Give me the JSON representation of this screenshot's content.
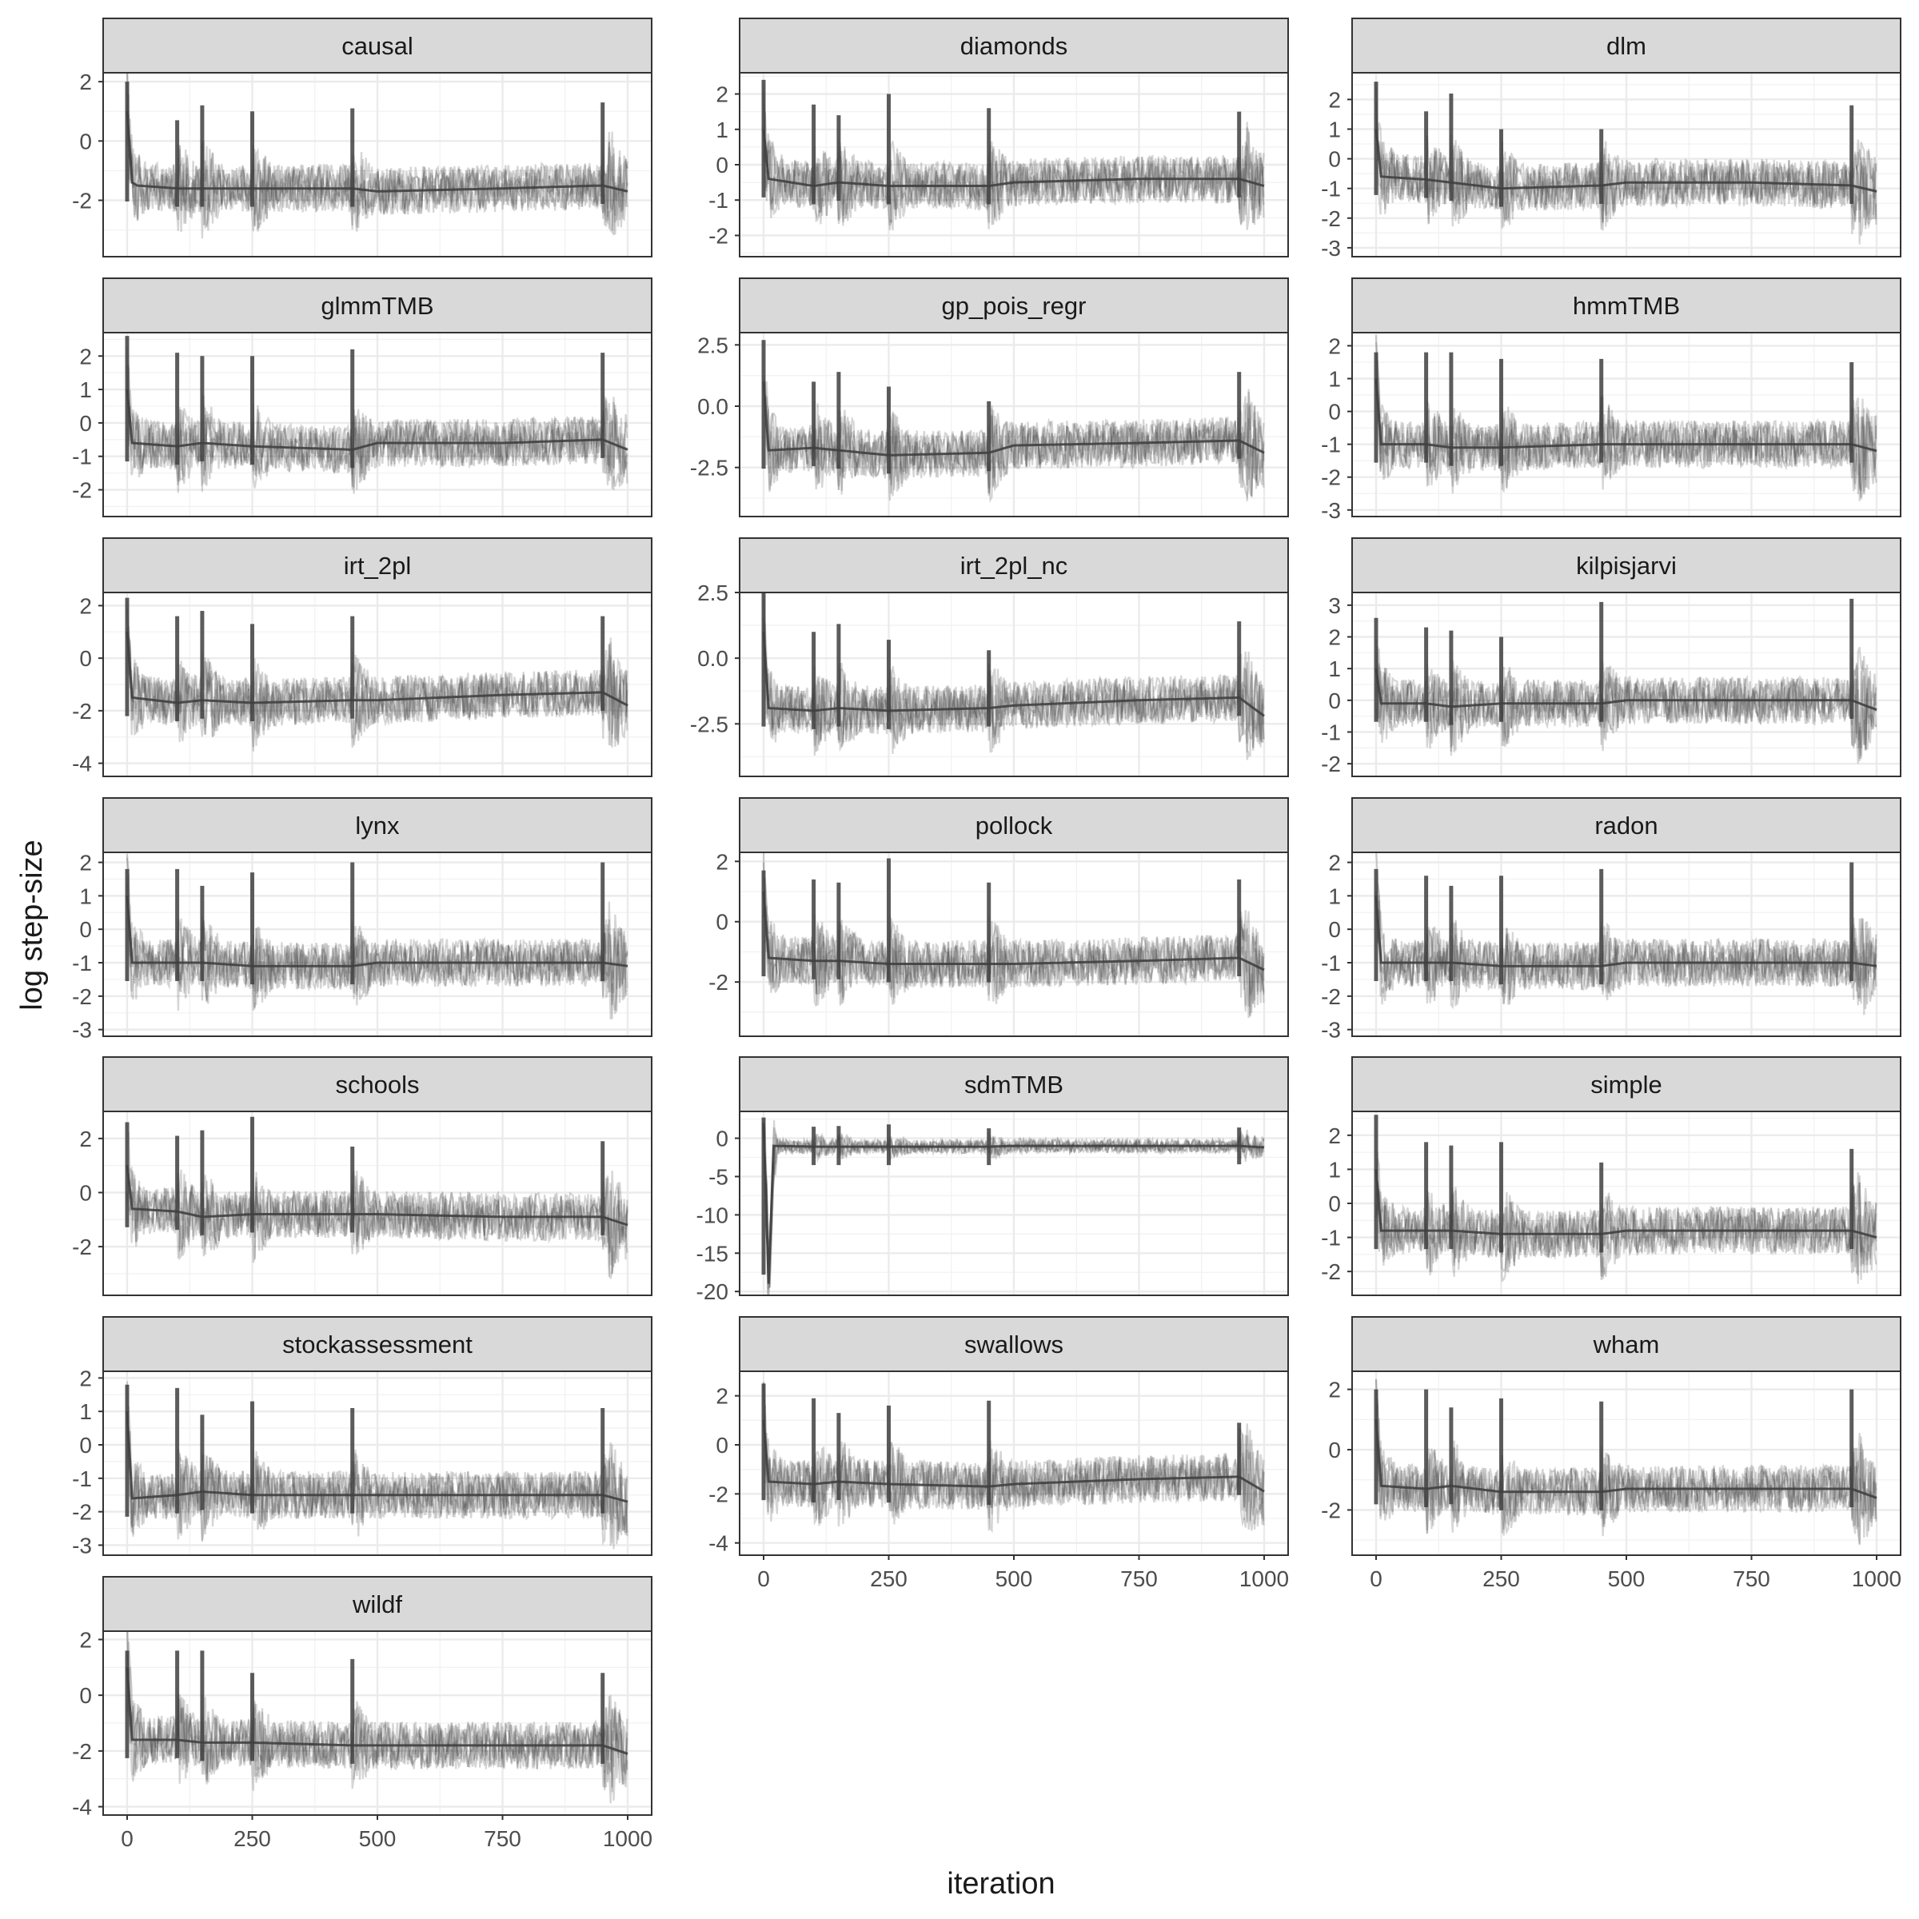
{
  "chart_data": {
    "type": "line",
    "layout": "faceted-grid",
    "xlabel": "iteration",
    "ylabel": "log step-size",
    "x_range": [
      0,
      1000
    ],
    "x_ticks": [
      0,
      250,
      500,
      750,
      1000
    ],
    "grid": true,
    "series_color": "#404040",
    "spike_iterations": [
      0,
      100,
      150,
      250,
      450,
      950
    ],
    "panels": [
      {
        "title": "causal",
        "ylim": [
          -3.9,
          2.3
        ],
        "y_ticks": [
          -2,
          0,
          2
        ],
        "y_tick_labels": [
          "-2",
          "0",
          "2"
        ],
        "spikes": [
          2.0,
          0.7,
          1.2,
          1.0,
          1.1,
          1.3
        ],
        "series": [
          {
            "x": [
              0,
              10,
              20,
              100,
              150,
              250,
              450,
              500,
              750,
              950,
              1000
            ],
            "y": [
              1.0,
              -1.4,
              -1.5,
              -1.6,
              -1.6,
              -1.6,
              -1.6,
              -1.7,
              -1.6,
              -1.5,
              -1.7
            ]
          }
        ]
      },
      {
        "title": "diamonds",
        "ylim": [
          -2.6,
          2.6
        ],
        "y_ticks": [
          -2,
          -1,
          0,
          1,
          2
        ],
        "y_tick_labels": [
          "-2",
          "-1",
          "0",
          "1",
          "2"
        ],
        "spikes": [
          2.4,
          1.7,
          1.4,
          2.0,
          1.6,
          1.5
        ],
        "series": [
          {
            "x": [
              0,
              10,
              100,
              150,
              250,
              450,
              500,
              750,
              950,
              1000
            ],
            "y": [
              1.0,
              -0.4,
              -0.6,
              -0.5,
              -0.6,
              -0.6,
              -0.5,
              -0.4,
              -0.4,
              -0.6
            ]
          }
        ]
      },
      {
        "title": "dlm",
        "ylim": [
          -3.3,
          2.9
        ],
        "y_ticks": [
          -3,
          -2,
          -1,
          0,
          1,
          2
        ],
        "y_tick_labels": [
          "-3",
          "-2",
          "-1",
          "0",
          "1",
          "2"
        ],
        "spikes": [
          2.6,
          1.6,
          2.2,
          1.0,
          1.0,
          1.8
        ],
        "series": [
          {
            "x": [
              0,
              10,
              100,
              150,
              250,
              450,
              500,
              750,
              950,
              1000
            ],
            "y": [
              1.0,
              -0.6,
              -0.7,
              -0.8,
              -1.0,
              -0.9,
              -0.8,
              -0.8,
              -0.9,
              -1.1
            ]
          }
        ]
      },
      {
        "title": "glmmTMB",
        "ylim": [
          -2.8,
          2.7
        ],
        "y_ticks": [
          -2,
          -1,
          0,
          1,
          2
        ],
        "y_tick_labels": [
          "-2",
          "-1",
          "0",
          "1",
          "2"
        ],
        "spikes": [
          2.6,
          2.1,
          2.0,
          2.0,
          2.2,
          2.1
        ],
        "series": [
          {
            "x": [
              0,
              10,
              100,
              150,
              250,
              450,
              500,
              750,
              950,
              1000
            ],
            "y": [
              1.0,
              -0.6,
              -0.7,
              -0.6,
              -0.7,
              -0.8,
              -0.6,
              -0.6,
              -0.5,
              -0.8
            ]
          }
        ]
      },
      {
        "title": "gp_pois_regr",
        "ylim": [
          -4.5,
          3.0
        ],
        "y_ticks": [
          -2.5,
          0,
          2.5
        ],
        "y_tick_labels": [
          "-2.5",
          "0.0",
          "2.5"
        ],
        "spikes": [
          2.7,
          1.0,
          1.4,
          0.8,
          0.2,
          1.4
        ],
        "series": [
          {
            "x": [
              0,
              10,
              100,
              150,
              250,
              450,
              500,
              750,
              950,
              1000
            ],
            "y": [
              1.0,
              -1.8,
              -1.7,
              -1.8,
              -2.0,
              -1.9,
              -1.6,
              -1.5,
              -1.4,
              -1.9
            ]
          }
        ]
      },
      {
        "title": "hmmTMB",
        "ylim": [
          -3.2,
          2.4
        ],
        "y_ticks": [
          -3,
          -2,
          -1,
          0,
          1,
          2
        ],
        "y_tick_labels": [
          "-3",
          "-2",
          "-1",
          "0",
          "1",
          "2"
        ],
        "spikes": [
          1.8,
          1.8,
          1.8,
          1.6,
          1.6,
          1.5
        ],
        "series": [
          {
            "x": [
              0,
              10,
              100,
              150,
              250,
              450,
              500,
              750,
              950,
              1000
            ],
            "y": [
              1.0,
              -1.0,
              -1.0,
              -1.1,
              -1.1,
              -1.0,
              -1.0,
              -1.0,
              -1.0,
              -1.2
            ]
          }
        ]
      },
      {
        "title": "irt_2pl",
        "ylim": [
          -4.5,
          2.5
        ],
        "y_ticks": [
          -4,
          -2,
          0,
          2
        ],
        "y_tick_labels": [
          "-4",
          "-2",
          "0",
          "2"
        ],
        "spikes": [
          2.3,
          1.6,
          1.8,
          1.3,
          1.6,
          1.6
        ],
        "series": [
          {
            "x": [
              0,
              10,
              100,
              150,
              250,
              450,
              500,
              750,
              950,
              1000
            ],
            "y": [
              1.0,
              -1.5,
              -1.7,
              -1.6,
              -1.7,
              -1.6,
              -1.6,
              -1.4,
              -1.3,
              -1.8
            ]
          }
        ]
      },
      {
        "title": "irt_2pl_nc",
        "ylim": [
          -4.5,
          2.5
        ],
        "y_ticks": [
          -2.5,
          0,
          2.5
        ],
        "y_tick_labels": [
          "-2.5",
          "0.0",
          "2.5"
        ],
        "spikes": [
          2.5,
          1.0,
          1.3,
          0.7,
          0.3,
          1.4
        ],
        "series": [
          {
            "x": [
              0,
              10,
              100,
              150,
              250,
              450,
              500,
              750,
              950,
              1000
            ],
            "y": [
              1.0,
              -1.9,
              -2.0,
              -1.9,
              -2.0,
              -1.9,
              -1.8,
              -1.6,
              -1.5,
              -2.2
            ]
          }
        ]
      },
      {
        "title": "kilpisjarvi",
        "ylim": [
          -2.4,
          3.4
        ],
        "y_ticks": [
          -2,
          -1,
          0,
          1,
          2,
          3
        ],
        "y_tick_labels": [
          "-2",
          "-1",
          "0",
          "1",
          "2",
          "3"
        ],
        "spikes": [
          2.6,
          2.3,
          2.2,
          2.0,
          3.1,
          3.2
        ],
        "series": [
          {
            "x": [
              0,
              10,
              100,
              150,
              250,
              450,
              500,
              750,
              950,
              1000
            ],
            "y": [
              1.0,
              -0.1,
              -0.1,
              -0.2,
              -0.1,
              -0.1,
              0.0,
              0.0,
              0.0,
              -0.3
            ]
          }
        ]
      },
      {
        "title": "lynx",
        "ylim": [
          -3.2,
          2.3
        ],
        "y_ticks": [
          -3,
          -2,
          -1,
          0,
          1,
          2
        ],
        "y_tick_labels": [
          "-3",
          "-2",
          "-1",
          "0",
          "1",
          "2"
        ],
        "spikes": [
          1.8,
          1.8,
          1.3,
          1.7,
          2.0,
          2.0
        ],
        "series": [
          {
            "x": [
              0,
              10,
              100,
              150,
              250,
              450,
              500,
              750,
              950,
              1000
            ],
            "y": [
              1.0,
              -1.0,
              -1.0,
              -1.0,
              -1.1,
              -1.1,
              -1.0,
              -1.0,
              -1.0,
              -1.1
            ]
          }
        ]
      },
      {
        "title": "pollock",
        "ylim": [
          -3.8,
          2.3
        ],
        "y_ticks": [
          -2,
          0,
          2
        ],
        "y_tick_labels": [
          "-2",
          "0",
          "2"
        ],
        "spikes": [
          1.7,
          1.4,
          1.3,
          2.1,
          1.3,
          1.4
        ],
        "series": [
          {
            "x": [
              0,
              10,
              100,
              150,
              250,
              450,
              500,
              750,
              950,
              1000
            ],
            "y": [
              1.0,
              -1.2,
              -1.3,
              -1.3,
              -1.4,
              -1.4,
              -1.4,
              -1.3,
              -1.2,
              -1.6
            ]
          }
        ]
      },
      {
        "title": "radon",
        "ylim": [
          -3.2,
          2.3
        ],
        "y_ticks": [
          -3,
          -2,
          -1,
          0,
          1,
          2
        ],
        "y_tick_labels": [
          "-3",
          "-2",
          "-1",
          "0",
          "1",
          "2"
        ],
        "spikes": [
          1.8,
          1.6,
          1.3,
          1.6,
          1.8,
          2.0
        ],
        "series": [
          {
            "x": [
              0,
              10,
              100,
              150,
              250,
              450,
              500,
              750,
              950,
              1000
            ],
            "y": [
              1.0,
              -1.0,
              -1.0,
              -1.0,
              -1.1,
              -1.1,
              -1.0,
              -1.0,
              -1.0,
              -1.1
            ]
          }
        ]
      },
      {
        "title": "schools",
        "ylim": [
          -3.8,
          3.0
        ],
        "y_ticks": [
          -2,
          0,
          2
        ],
        "y_tick_labels": [
          "-2",
          "0",
          "2"
        ],
        "spikes": [
          2.6,
          2.1,
          2.3,
          2.8,
          1.7,
          1.9
        ],
        "series": [
          {
            "x": [
              0,
              10,
              100,
              150,
              250,
              450,
              500,
              750,
              950,
              1000
            ],
            "y": [
              1.0,
              -0.6,
              -0.7,
              -0.9,
              -0.8,
              -0.8,
              -0.8,
              -0.9,
              -0.9,
              -1.2
            ]
          }
        ]
      },
      {
        "title": "sdmTMB",
        "ylim": [
          -20.5,
          3.5
        ],
        "y_ticks": [
          -20,
          -15,
          -10,
          -5,
          0
        ],
        "y_tick_labels": [
          "-20",
          "-15",
          "-10",
          "-5",
          "0"
        ],
        "spikes": [
          2.7,
          1.5,
          1.6,
          1.8,
          1.3,
          1.4
        ],
        "series": [
          {
            "x": [
              0,
              10,
              20,
              100,
              150,
              250,
              450,
              500,
              750,
              950,
              1000
            ],
            "y": [
              2.0,
              -19.0,
              -1.0,
              -1.1,
              -1.1,
              -1.1,
              -1.1,
              -1.0,
              -1.0,
              -1.0,
              -1.2
            ]
          }
        ]
      },
      {
        "title": "simple",
        "ylim": [
          -2.7,
          2.7
        ],
        "y_ticks": [
          -2,
          -1,
          0,
          1,
          2
        ],
        "y_tick_labels": [
          "-2",
          "-1",
          "0",
          "1",
          "2"
        ],
        "spikes": [
          2.6,
          1.8,
          1.7,
          1.8,
          1.2,
          1.6
        ],
        "series": [
          {
            "x": [
              0,
              10,
              100,
              150,
              250,
              450,
              500,
              750,
              950,
              1000
            ],
            "y": [
              1.0,
              -0.8,
              -0.8,
              -0.8,
              -0.9,
              -0.9,
              -0.8,
              -0.8,
              -0.8,
              -1.0
            ]
          }
        ]
      },
      {
        "title": "stockassessment",
        "ylim": [
          -3.3,
          2.2
        ],
        "y_ticks": [
          -3,
          -2,
          -1,
          0,
          1,
          2
        ],
        "y_tick_labels": [
          "-3",
          "-2",
          "-1",
          "0",
          "1",
          "2"
        ],
        "spikes": [
          1.8,
          1.7,
          0.9,
          1.3,
          1.1,
          1.1
        ],
        "series": [
          {
            "x": [
              0,
              10,
              100,
              150,
              250,
              450,
              500,
              750,
              950,
              1000
            ],
            "y": [
              1.0,
              -1.6,
              -1.5,
              -1.4,
              -1.5,
              -1.5,
              -1.5,
              -1.5,
              -1.5,
              -1.7
            ]
          }
        ]
      },
      {
        "title": "swallows",
        "ylim": [
          -4.5,
          3.0
        ],
        "y_ticks": [
          -4,
          -2,
          0,
          2
        ],
        "y_tick_labels": [
          "-4",
          "-2",
          "0",
          "2"
        ],
        "spikes": [
          2.5,
          1.9,
          1.3,
          1.6,
          1.8,
          0.9
        ],
        "series": [
          {
            "x": [
              0,
              10,
              100,
              150,
              250,
              450,
              500,
              750,
              950,
              1000
            ],
            "y": [
              1.0,
              -1.5,
              -1.6,
              -1.5,
              -1.6,
              -1.7,
              -1.6,
              -1.4,
              -1.3,
              -1.9
            ]
          }
        ]
      },
      {
        "title": "wham",
        "ylim": [
          -3.5,
          2.6
        ],
        "y_ticks": [
          -2,
          0,
          2
        ],
        "y_tick_labels": [
          "-2",
          "0",
          "2"
        ],
        "spikes": [
          2.0,
          2.0,
          1.4,
          1.7,
          1.6,
          2.0
        ],
        "series": [
          {
            "x": [
              0,
              10,
              100,
              150,
              250,
              450,
              500,
              750,
              950,
              1000
            ],
            "y": [
              1.0,
              -1.2,
              -1.3,
              -1.2,
              -1.4,
              -1.4,
              -1.3,
              -1.3,
              -1.3,
              -1.6
            ]
          }
        ]
      },
      {
        "title": "wildf",
        "ylim": [
          -4.3,
          2.3
        ],
        "y_ticks": [
          -4,
          -2,
          0,
          2
        ],
        "y_tick_labels": [
          "-4",
          "-2",
          "0",
          "2"
        ],
        "spikes": [
          1.6,
          1.6,
          1.6,
          0.8,
          1.3,
          0.8
        ],
        "series": [
          {
            "x": [
              0,
              10,
              100,
              150,
              250,
              450,
              500,
              750,
              950,
              1000
            ],
            "y": [
              1.0,
              -1.6,
              -1.6,
              -1.7,
              -1.7,
              -1.8,
              -1.8,
              -1.8,
              -1.8,
              -2.1
            ]
          }
        ]
      }
    ]
  }
}
